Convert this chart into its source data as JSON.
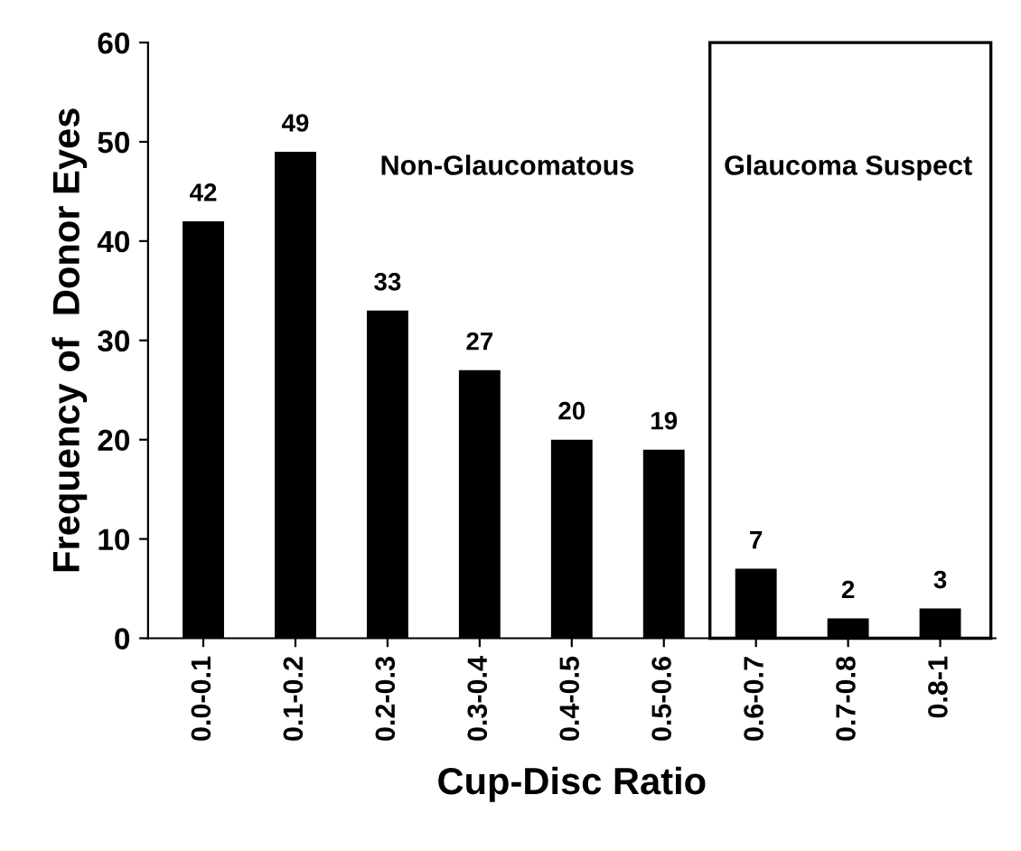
{
  "chart_data": {
    "type": "bar",
    "xlabel": "Cup-Disc Ratio",
    "ylabel": "Frequency of  Donor Eyes",
    "categories": [
      "0.0-0.1",
      "0.1-0.2",
      "0.2-0.3",
      "0.3-0.4",
      "0.4-0.5",
      "0.5-0.6",
      "0.6-0.7",
      "0.7-0.8",
      "0.8-1"
    ],
    "values": [
      42,
      49,
      33,
      27,
      20,
      19,
      7,
      2,
      3
    ],
    "color": "#000000",
    "ylim": [
      0,
      60
    ],
    "yticks": [
      0,
      10,
      20,
      30,
      40,
      50,
      60
    ],
    "data_labels": true,
    "grid": false,
    "legend": false,
    "annotations": [
      "Non-Glaucomatous",
      "Glaucoma Suspect"
    ]
  }
}
